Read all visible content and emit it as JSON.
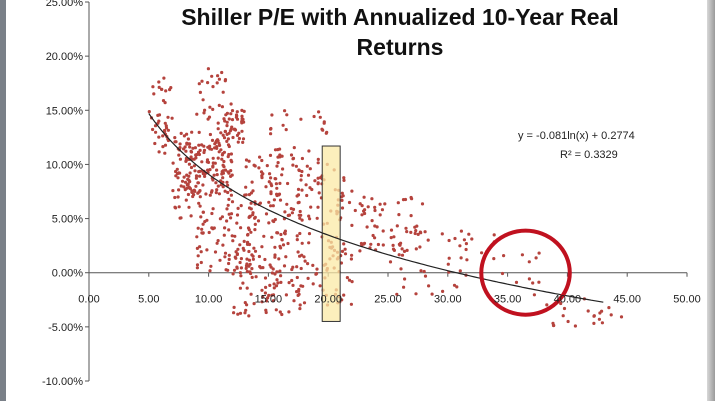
{
  "chart_data": {
    "type": "scatter",
    "title": "Shiller P/E with Annualized 10-Year Real Returns",
    "title_lines": [
      "Shiller P/E with Annualized 10-Year Real",
      "Returns"
    ],
    "xlabel": "",
    "ylabel": "",
    "xlim": [
      0,
      50
    ],
    "ylim": [
      -10,
      25
    ],
    "x_ticks": [
      "0.00",
      "5.00",
      "10.00",
      "15.00",
      "20.00",
      "25.00",
      "30.00",
      "35.00",
      "40.00",
      "45.00",
      "50.00"
    ],
    "y_ticks": [
      "25.00%",
      "20.00%",
      "15.00%",
      "10.00%",
      "5.00%",
      "0.00%",
      "-5.00%",
      "-10.00%"
    ],
    "x_tick_values": [
      0,
      5,
      10,
      15,
      20,
      25,
      30,
      35,
      40,
      45,
      50
    ],
    "y_tick_values": [
      25,
      20,
      15,
      10,
      5,
      0,
      -5,
      -10
    ],
    "grid": false,
    "point_color": "#b5433d",
    "trendline": {
      "type": "logarithmic",
      "a": -0.081,
      "b": 0.2774,
      "x_range": [
        5,
        43
      ],
      "color": "#222222",
      "equation_text": "y = -0.081ln(x) + 0.2774",
      "r2_text": "R² = 0.3329"
    },
    "highlight_bar": {
      "x_range": [
        19.5,
        21
      ],
      "y_range": [
        -4.5,
        11.7
      ],
      "fill": "#fbe9a6",
      "stroke": "#333333"
    },
    "highlight_circle": {
      "center": [
        36.5,
        0
      ],
      "radius_x_units": 3.7,
      "stroke": "#c0111f"
    },
    "clusters": [
      {
        "x": [
          5,
          7
        ],
        "y": [
          11,
          18
        ],
        "n": 40
      },
      {
        "x": [
          7,
          9
        ],
        "y": [
          5,
          13
        ],
        "n": 60
      },
      {
        "x": [
          8,
          12
        ],
        "y": [
          7,
          12
        ],
        "n": 130
      },
      {
        "x": [
          9,
          12
        ],
        "y": [
          12,
          19
        ],
        "n": 40
      },
      {
        "x": [
          11,
          13
        ],
        "y": [
          12,
          15
        ],
        "n": 40
      },
      {
        "x": [
          9,
          14
        ],
        "y": [
          0,
          7
        ],
        "n": 90
      },
      {
        "x": [
          12,
          18
        ],
        "y": [
          -4,
          3
        ],
        "n": 110
      },
      {
        "x": [
          13,
          18
        ],
        "y": [
          3,
          11
        ],
        "n": 100
      },
      {
        "x": [
          15,
          20
        ],
        "y": [
          7,
          15
        ],
        "n": 50
      },
      {
        "x": [
          18,
          22
        ],
        "y": [
          -3,
          10
        ],
        "n": 90
      },
      {
        "x": [
          22,
          28
        ],
        "y": [
          2,
          7
        ],
        "n": 60
      },
      {
        "x": [
          25,
          32
        ],
        "y": [
          -2,
          4
        ],
        "n": 35
      },
      {
        "x": [
          30,
          34
        ],
        "y": [
          1,
          4
        ],
        "n": 12
      },
      {
        "x": [
          34,
          39
        ],
        "y": [
          -1,
          2
        ],
        "n": 10
      },
      {
        "x": [
          37,
          42
        ],
        "y": [
          -5,
          -2
        ],
        "n": 12
      },
      {
        "x": [
          42,
          45
        ],
        "y": [
          -5,
          -3
        ],
        "n": 10
      }
    ]
  }
}
